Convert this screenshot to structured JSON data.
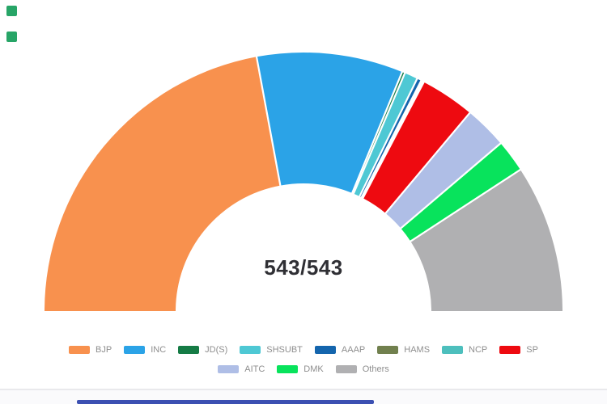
{
  "page": {
    "background": "#ffffff"
  },
  "chart_data": {
    "type": "pie",
    "variant": "half-donut",
    "title": "",
    "center_label": "543/543",
    "total": 543,
    "start_angle_deg": 180,
    "end_angle_deg": 0,
    "inner_radius_ratio": 0.49,
    "grid": false,
    "legend_position": "bottom",
    "series": [
      {
        "name": "BJP",
        "value": 240,
        "color": "#F8914E"
      },
      {
        "name": "INC",
        "value": 99,
        "color": "#2BA3E7"
      },
      {
        "name": "JD(S)",
        "value": 2,
        "color": "#157B45"
      },
      {
        "name": "SHSUBT",
        "value": 9,
        "color": "#4EC8D4"
      },
      {
        "name": "AAAP",
        "value": 3,
        "color": "#1465AD"
      },
      {
        "name": "HAMS",
        "value": 1,
        "color": "#71804E"
      },
      {
        "name": "NCP",
        "value": 1,
        "color": "#4DBFBD"
      },
      {
        "name": "SP",
        "value": 37,
        "color": "#EE0A10"
      },
      {
        "name": "AITC",
        "value": 29,
        "color": "#AFBEE6"
      },
      {
        "name": "DMK",
        "value": 22,
        "color": "#08E35C"
      },
      {
        "name": "Others",
        "value": 100,
        "color": "#B0B0B2"
      }
    ],
    "legend_rows": [
      [
        "BJP",
        "INC",
        "JD(S)",
        "SHSUBT",
        "AAAP",
        "HAMS",
        "NCP",
        "SP"
      ],
      [
        "AITC",
        "DMK",
        "Others"
      ]
    ],
    "legend_text_color": "#8e8e8e",
    "center_label_color": "#2f2f34",
    "separator_color": "#ffffff"
  },
  "decorations": {
    "square_color": "#27A567",
    "scrollbar_thumb_color": "#3C50B2",
    "scrollbar_track_color": "#fafafc"
  }
}
